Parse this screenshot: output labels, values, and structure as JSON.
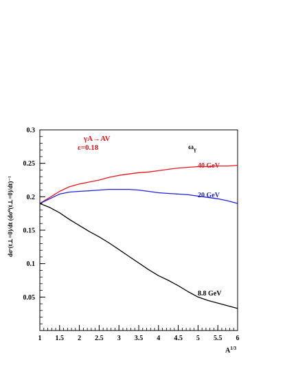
{
  "chart_data": {
    "type": "line",
    "xlabel": "A",
    "xlabel_sup": "1/3",
    "ylabel": "dσᵛ(t⊥=0)/dt (dσ⁰(t⊥=0)/dt)⁻¹",
    "xlim": [
      1,
      6
    ],
    "ylim": [
      0,
      0.3
    ],
    "x_ticks": [
      1,
      1.5,
      2,
      2.5,
      3,
      3.5,
      4,
      4.5,
      5,
      5.5,
      6
    ],
    "x_tick_labels": [
      "1",
      "1.5",
      "2",
      "2.5",
      "3",
      "3.5",
      "4",
      "4.5",
      "5",
      "5.5",
      "6"
    ],
    "y_ticks": [
      0.05,
      0.1,
      0.15,
      0.2,
      0.25,
      0.3
    ],
    "y_tick_labels": [
      "0.05",
      "0.1",
      "0.15",
      "0.2",
      "0.25",
      "0.3"
    ],
    "grid": false,
    "annotations": {
      "process": "γA→AV",
      "epsilon": "ε=0.18",
      "omega": "ω",
      "omega_sub": "γ"
    },
    "series": [
      {
        "name": "40 GeV",
        "color": "#e8141b",
        "x": [
          1.0,
          1.25,
          1.5,
          1.75,
          2.0,
          2.25,
          2.5,
          2.75,
          3.0,
          3.25,
          3.5,
          3.75,
          4.0,
          4.25,
          4.5,
          4.75,
          5.0,
          5.25,
          5.5,
          5.75,
          6.0
        ],
        "y": [
          0.19,
          0.199,
          0.208,
          0.215,
          0.219,
          0.222,
          0.225,
          0.229,
          0.232,
          0.234,
          0.236,
          0.237,
          0.239,
          0.241,
          0.243,
          0.244,
          0.245,
          0.245,
          0.246,
          0.246,
          0.247
        ]
      },
      {
        "name": "20 GeV",
        "color": "#1e1edc",
        "x": [
          1.0,
          1.25,
          1.5,
          1.75,
          2.0,
          2.25,
          2.5,
          2.75,
          3.0,
          3.25,
          3.5,
          3.75,
          4.0,
          4.25,
          4.5,
          4.75,
          5.0,
          5.25,
          5.5,
          5.75,
          6.0
        ],
        "y": [
          0.19,
          0.197,
          0.204,
          0.207,
          0.208,
          0.209,
          0.21,
          0.211,
          0.211,
          0.211,
          0.21,
          0.208,
          0.206,
          0.205,
          0.204,
          0.203,
          0.201,
          0.199,
          0.197,
          0.194,
          0.19
        ]
      },
      {
        "name": "8.8 GeV",
        "color": "#000000",
        "x": [
          1.0,
          1.25,
          1.5,
          1.75,
          2.0,
          2.25,
          2.5,
          2.75,
          3.0,
          3.25,
          3.5,
          3.75,
          4.0,
          4.25,
          4.5,
          4.75,
          5.0,
          5.25,
          5.5,
          5.75,
          6.0
        ],
        "y": [
          0.19,
          0.184,
          0.176,
          0.166,
          0.157,
          0.148,
          0.14,
          0.131,
          0.121,
          0.111,
          0.101,
          0.091,
          0.082,
          0.075,
          0.067,
          0.058,
          0.05,
          0.045,
          0.041,
          0.037,
          0.033
        ]
      }
    ]
  }
}
